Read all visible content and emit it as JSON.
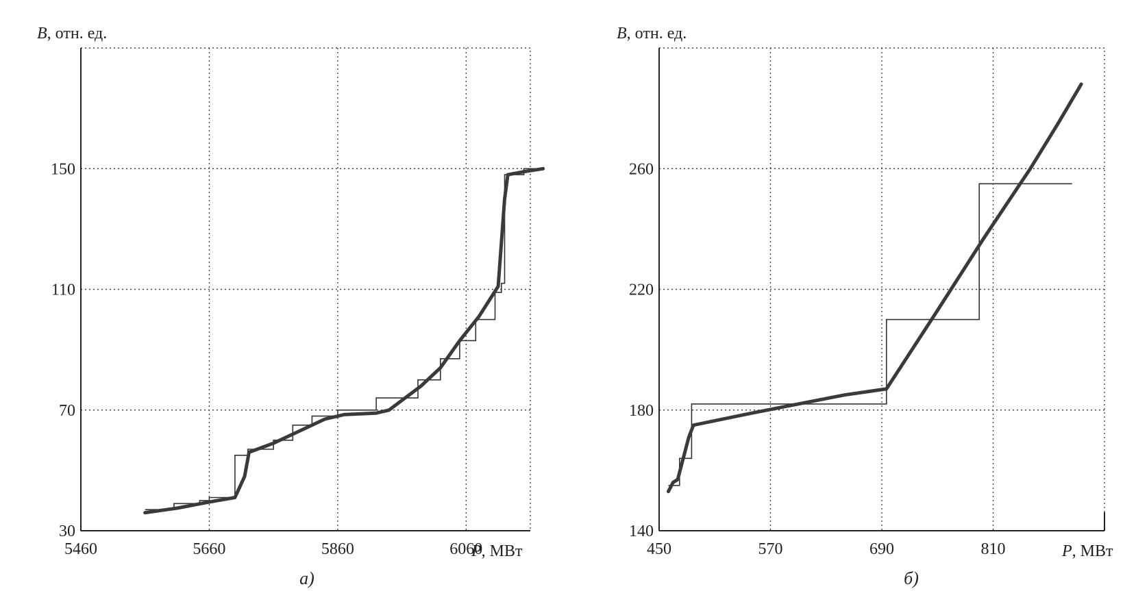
{
  "chart_data": [
    {
      "type": "line",
      "panel_caption": "а)",
      "ylabel_var": "B",
      "ylabel_unit": ", отн. ед.",
      "xlabel_var": "P",
      "xlabel_unit": ", МВт",
      "xlim": [
        5460,
        6160
      ],
      "ylim": [
        30,
        190
      ],
      "xticks": [
        5460,
        5660,
        5860,
        6060
      ],
      "xtick_labels": [
        "5460",
        "5660",
        "5860",
        "6060"
      ],
      "yticks": [
        30,
        70,
        110,
        150
      ],
      "ytick_labels": [
        "30",
        "70",
        "110",
        "150"
      ],
      "grid": true,
      "series": [
        {
          "style": "thick",
          "points": [
            [
              5560,
              36
            ],
            [
              5610,
              37.5
            ],
            [
              5660,
              39.5
            ],
            [
              5700,
              41
            ],
            [
              5715,
              48
            ],
            [
              5722,
              56
            ],
            [
              5760,
              59
            ],
            [
              5800,
              63
            ],
            [
              5840,
              67
            ],
            [
              5870,
              68.5
            ],
            [
              5920,
              69
            ],
            [
              5940,
              70
            ],
            [
              5990,
              78
            ],
            [
              6020,
              84
            ],
            [
              6050,
              93
            ],
            [
              6080,
              101
            ],
            [
              6110,
              111
            ],
            [
              6120,
              140
            ],
            [
              6125,
              148
            ],
            [
              6150,
              149
            ],
            [
              6180,
              150
            ]
          ]
        },
        {
          "style": "thin",
          "points": [
            [
              5560,
              37
            ],
            [
              5605,
              37
            ],
            [
              5605,
              39
            ],
            [
              5645,
              39
            ],
            [
              5645,
              40
            ],
            [
              5660,
              40
            ],
            [
              5660,
              41
            ],
            [
              5700,
              41
            ],
            [
              5700,
              55
            ],
            [
              5720,
              55
            ],
            [
              5720,
              57
            ],
            [
              5760,
              57
            ],
            [
              5760,
              60
            ],
            [
              5790,
              60
            ],
            [
              5790,
              65
            ],
            [
              5820,
              65
            ],
            [
              5820,
              68
            ],
            [
              5860,
              68
            ],
            [
              5860,
              70
            ],
            [
              5920,
              70
            ],
            [
              5920,
              74
            ],
            [
              5985,
              74
            ],
            [
              5985,
              80
            ],
            [
              6020,
              80
            ],
            [
              6020,
              87
            ],
            [
              6050,
              87
            ],
            [
              6050,
              93
            ],
            [
              6075,
              93
            ],
            [
              6075,
              100
            ],
            [
              6105,
              100
            ],
            [
              6105,
              109
            ],
            [
              6115,
              109
            ],
            [
              6115,
              112
            ],
            [
              6120,
              112
            ],
            [
              6120,
              148
            ],
            [
              6150,
              148
            ],
            [
              6150,
              150
            ],
            [
              6180,
              150
            ]
          ]
        }
      ]
    },
    {
      "type": "line",
      "panel_caption": "б)",
      "ylabel_var": "B",
      "ylabel_unit": ", отн. ед.",
      "xlabel_var": "P",
      "xlabel_unit": ", МВт",
      "xlim": [
        450,
        930
      ],
      "ylim": [
        140,
        300
      ],
      "xticks": [
        450,
        570,
        690,
        810
      ],
      "xtick_labels": [
        "450",
        "570",
        "690",
        "810"
      ],
      "yticks": [
        140,
        180,
        220,
        260
      ],
      "ytick_labels": [
        "140",
        "180",
        "220",
        "260"
      ],
      "grid": true,
      "series": [
        {
          "style": "thick",
          "points": [
            [
              460,
              153
            ],
            [
              465,
              156
            ],
            [
              470,
              157
            ],
            [
              482,
              171
            ],
            [
              487,
              175
            ],
            [
              550,
              179
            ],
            [
              600,
              182
            ],
            [
              650,
              185
            ],
            [
              695,
              187
            ],
            [
              750,
              213
            ],
            [
              800,
              237
            ],
            [
              850,
              260
            ],
            [
              880,
              275
            ],
            [
              905,
              288
            ]
          ]
        },
        {
          "style": "thin",
          "points": [
            [
              460,
              155
            ],
            [
              472,
              155
            ],
            [
              472,
              164
            ],
            [
              485,
              164
            ],
            [
              485,
              182
            ],
            [
              695,
              182
            ],
            [
              695,
              210
            ],
            [
              795,
              210
            ],
            [
              795,
              255
            ],
            [
              895,
              255
            ]
          ]
        }
      ]
    }
  ]
}
